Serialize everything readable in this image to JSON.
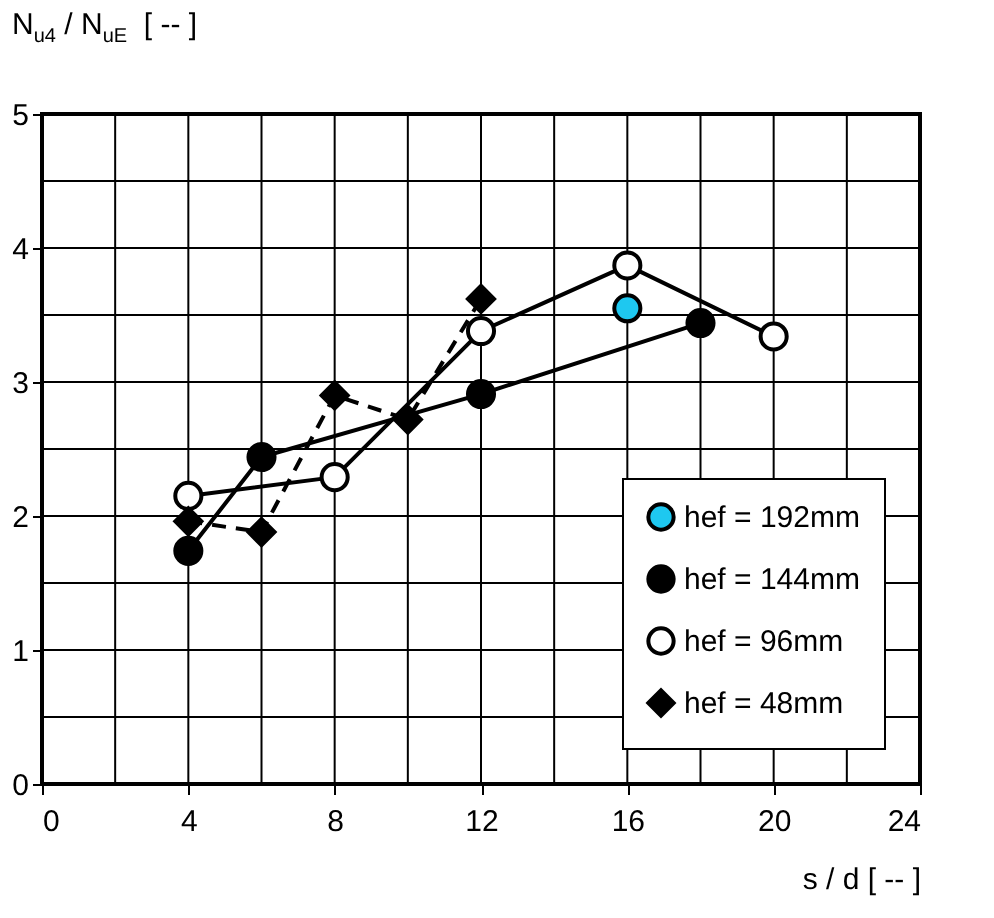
{
  "chart_data": {
    "type": "line",
    "xlabel": "s / d  [ -- ]",
    "ylabel": "N$_{u4}$ / N$_{uE}$  [ -- ]",
    "xlim": [
      0,
      24
    ],
    "xticks": [
      0,
      {
        "value": 2,
        "label": null
      },
      4,
      {
        "value": 6,
        "label": null
      },
      8,
      {
        "value": 10,
        "label": null
      },
      12,
      {
        "value": 14,
        "label": null
      },
      16,
      {
        "value": 18,
        "label": null
      },
      20,
      {
        "value": 22,
        "label": null
      },
      24
    ],
    "ylim": [
      0,
      5
    ],
    "yticks": [
      0,
      {
        "value": 0.5,
        "label": null
      },
      1,
      {
        "value": 1.5,
        "label": null
      },
      2,
      {
        "value": 2.5,
        "label": null
      },
      3,
      {
        "value": 3.5,
        "label": null
      },
      4,
      {
        "value": 4.5,
        "label": null
      },
      5
    ],
    "grid": true,
    "legend": "bottom right",
    "series": [
      {
        "name": "hef = 192mm",
        "type": "scatter",
        "marker": "circle",
        "color": "#1ec8f0",
        "x": [
          16
        ],
        "values": [
          3.55
        ]
      },
      {
        "name": "hef = 144mm",
        "marker": "circle",
        "line_style": "solid",
        "color": "#000000",
        "x": [
          4,
          6,
          12,
          18
        ],
        "values": [
          1.74,
          2.44,
          2.91,
          3.44
        ]
      },
      {
        "name": "hef =   96mm",
        "marker": "circle-open",
        "line_style": "solid",
        "color": "#000000",
        "x": [
          4,
          8,
          12,
          16,
          20
        ],
        "values": [
          2.15,
          2.29,
          3.38,
          3.87,
          3.34
        ]
      },
      {
        "name": "hef =   48mm",
        "marker": "diamond",
        "line_style": "dashed",
        "color": "#000000",
        "x": [
          4,
          6,
          8,
          10,
          12
        ],
        "values": [
          1.96,
          1.88,
          2.9,
          2.72,
          3.62
        ]
      }
    ]
  }
}
